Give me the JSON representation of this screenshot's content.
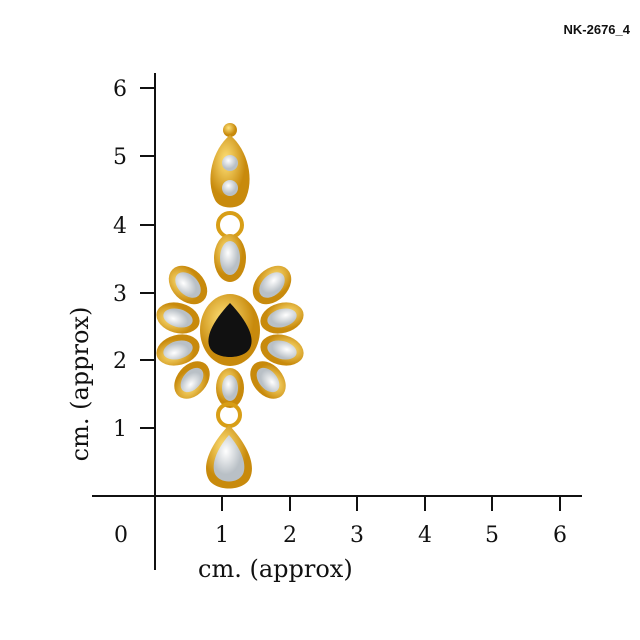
{
  "product_code": "NK-2676_4",
  "x_axis": {
    "label": "cm. (approx)",
    "ticks": [
      "0",
      "1",
      "2",
      "3",
      "4",
      "5",
      "6"
    ]
  },
  "y_axis": {
    "label": "cm. (approx)",
    "ticks": [
      "1",
      "2",
      "3",
      "4",
      "5",
      "6"
    ]
  },
  "colors": {
    "gold": "#e0a61a",
    "stone_black": "#111111",
    "kundan": "#e8ecef"
  }
}
